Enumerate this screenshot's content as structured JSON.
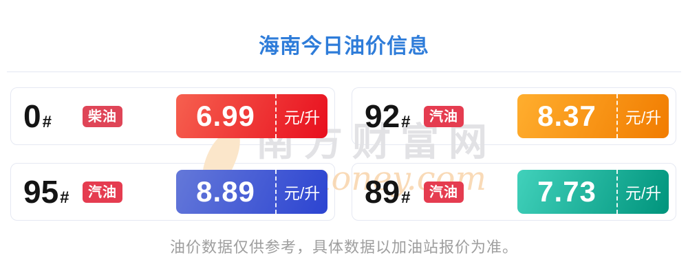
{
  "page": {
    "title": "海南今日油价信息",
    "title_color": "#2e7cd9",
    "disclaimer": "油价数据仅供参考，具体数据以加油站报价为准。"
  },
  "watermark": {
    "site_name": "南方财富网",
    "domain": "money.com"
  },
  "cards": [
    {
      "grade": "0",
      "hash": "#",
      "type": "柴油",
      "badge_color": "#df4557",
      "price": "6.99",
      "unit": "元/升",
      "gradient": {
        "from": "#f6604f",
        "to": "#e80f1e"
      }
    },
    {
      "grade": "92",
      "hash": "#",
      "type": "汽油",
      "badge_color": "#e53c50",
      "price": "8.37",
      "unit": "元/升",
      "gradient": {
        "from": "#ffae2e",
        "to": "#f17c00"
      }
    },
    {
      "grade": "95",
      "hash": "#",
      "type": "汽油",
      "badge_color": "#e53c50",
      "price": "8.89",
      "unit": "元/升",
      "gradient": {
        "from": "#6478d9",
        "to": "#2c44d1"
      }
    },
    {
      "grade": "89",
      "hash": "#",
      "type": "汽油",
      "badge_color": "#e53c50",
      "price": "7.73",
      "unit": "元/升",
      "gradient": {
        "from": "#41d1bb",
        "to": "#00947c"
      }
    }
  ]
}
